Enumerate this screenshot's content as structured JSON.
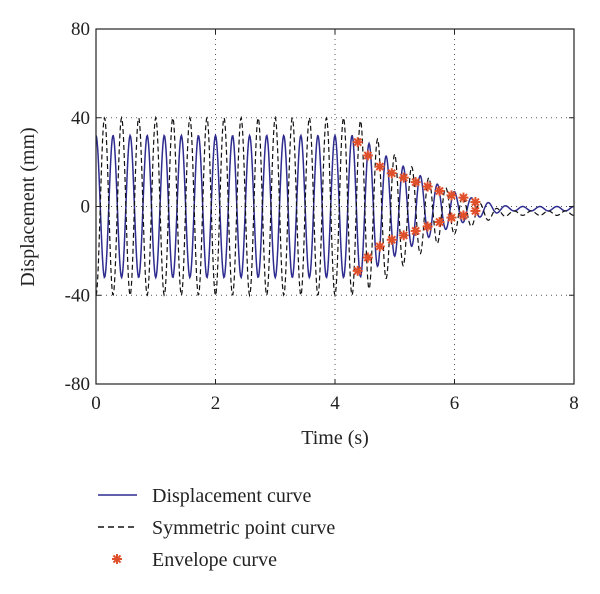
{
  "chart_data": {
    "type": "line",
    "title": "",
    "xlabel": "Time (s)",
    "ylabel": "Displacement (mm)",
    "xlim": [
      0,
      8
    ],
    "ylim": [
      -80,
      80
    ],
    "x_ticks": [
      0,
      2,
      4,
      6,
      8
    ],
    "y_ticks": [
      80,
      40,
      0,
      -40,
      -80
    ],
    "x_tick_labels": [
      "0",
      "2",
      "4",
      "6",
      "8"
    ],
    "y_tick_labels": [
      "80",
      "40",
      "0",
      "-40",
      "-80"
    ],
    "grid": "dotted",
    "legend_position": "below",
    "series": [
      {
        "name": "Displacement curve",
        "style": "solid",
        "color": "#2e2c8f",
        "model": {
          "amplitude_start": 32,
          "steady_until": 4.35,
          "decay_end": 7.0,
          "tail_amplitude": 1.0,
          "period": 0.2857,
          "phase": 0,
          "offset": -1,
          "sample_step": 0.01
        }
      },
      {
        "name": "Symmetric point curve",
        "style": "dashed",
        "color": "#111111",
        "model": {
          "amplitude_start": 40,
          "steady_until": 4.35,
          "decay_end": 7.0,
          "tail_amplitude": 1.0,
          "period": 0.2857,
          "phase": 3.14159,
          "offset": -3,
          "sample_step": 0.01
        }
      },
      {
        "name": "Envelope curve",
        "style": "marker",
        "marker": "asterisk",
        "color": "#e0502a",
        "points": [
          {
            "x": 4.38,
            "y": 29
          },
          {
            "x": 4.38,
            "y": -29
          },
          {
            "x": 4.55,
            "y": 23
          },
          {
            "x": 4.55,
            "y": -23
          },
          {
            "x": 4.75,
            "y": 18
          },
          {
            "x": 4.75,
            "y": -18
          },
          {
            "x": 4.95,
            "y": 15
          },
          {
            "x": 4.95,
            "y": -15
          },
          {
            "x": 5.15,
            "y": 13
          },
          {
            "x": 5.15,
            "y": -13
          },
          {
            "x": 5.35,
            "y": 11
          },
          {
            "x": 5.35,
            "y": -11
          },
          {
            "x": 5.55,
            "y": 9
          },
          {
            "x": 5.55,
            "y": -9
          },
          {
            "x": 5.75,
            "y": 7
          },
          {
            "x": 5.75,
            "y": -7
          },
          {
            "x": 5.95,
            "y": 5
          },
          {
            "x": 5.95,
            "y": -5
          },
          {
            "x": 6.15,
            "y": 4
          },
          {
            "x": 6.15,
            "y": -4
          },
          {
            "x": 6.35,
            "y": 2
          },
          {
            "x": 6.35,
            "y": -2
          }
        ]
      }
    ]
  }
}
